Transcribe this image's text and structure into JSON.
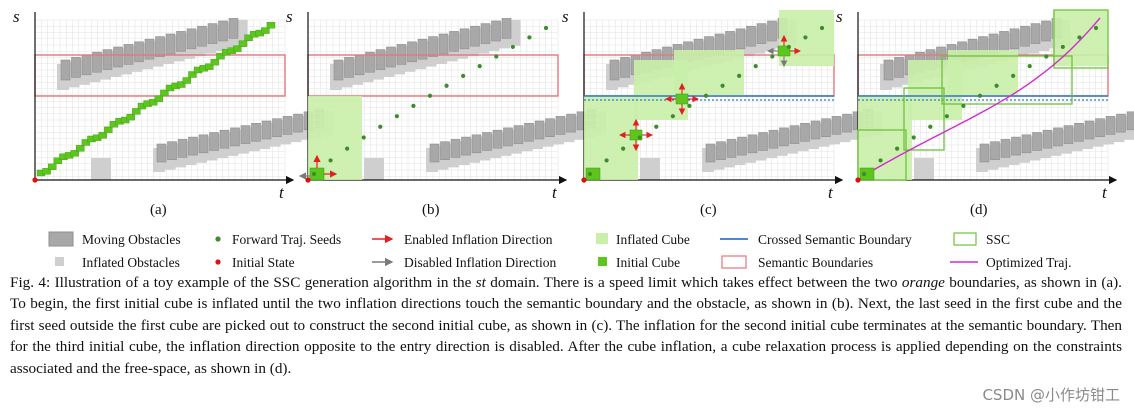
{
  "figure": {
    "axis_x": "t",
    "axis_y": "s",
    "panels": [
      {
        "label": "(a)"
      },
      {
        "label": "(b)"
      },
      {
        "label": "(c)"
      },
      {
        "label": "(d)"
      }
    ]
  },
  "legend": {
    "moving_obstacles": "Moving Obstacles",
    "inflated_obstacles": "Inflated Obstacles",
    "forward_seeds": "Forward Traj. Seeds",
    "initial_state": "Initial State",
    "enabled_direction": "Enabled Inflation Direction",
    "disabled_direction": "Disabled Inflation Direction",
    "inflated_cube": "Inflated Cube",
    "initial_cube": "Initial Cube",
    "crossed_boundary": "Crossed Semantic Boundary",
    "semantic_boundaries": "Semantic Boundaries",
    "ssc": "SSC",
    "optimized_traj": "Optimized Traj."
  },
  "caption": {
    "lead": "Fig. 4: Illustration of a toy example of the SSC generation algorithm in the ",
    "st": "st",
    "part2": " domain. There is a speed limit which takes effect between the two ",
    "orange": "orange",
    "part3": " boundaries, as shown in (a). To begin, the first initial cube is inflated until the two inflation directions touch the semantic boundary and the obstacle, as shown in (b). Next, the last seed in the first cube and the first seed outside the first cube are picked out to construct the second initial cube, as shown in (c). The inflation for the second initial cube terminates at the semantic boundary. Then for the third initial cube, the inflation direction opposite to the entry direction is disabled. After the cube inflation, a cube relaxation process is applied depending on the constraints associated and the free-space, as shown in (d)."
  },
  "watermark": "CSDN @小作坊钳工",
  "colors": {
    "obstacle": "#a8a8a8",
    "obstacle_dark": "#8f8f8f",
    "inflated_obstacle": "#cfcfcf",
    "grid": "#e4e4e4",
    "seed": "#3d8b2a",
    "initial_cube": "#5cc51e",
    "inflated_cube": "#c9efaa",
    "ssc_stroke": "#6ec23a",
    "semantic_boundary": "#e8747c",
    "crossed_boundary": "#2f79c8",
    "optimized_traj": "#d42ad1",
    "arrow_enabled": "#e32020",
    "arrow_disabled": "#7a7a7a"
  }
}
